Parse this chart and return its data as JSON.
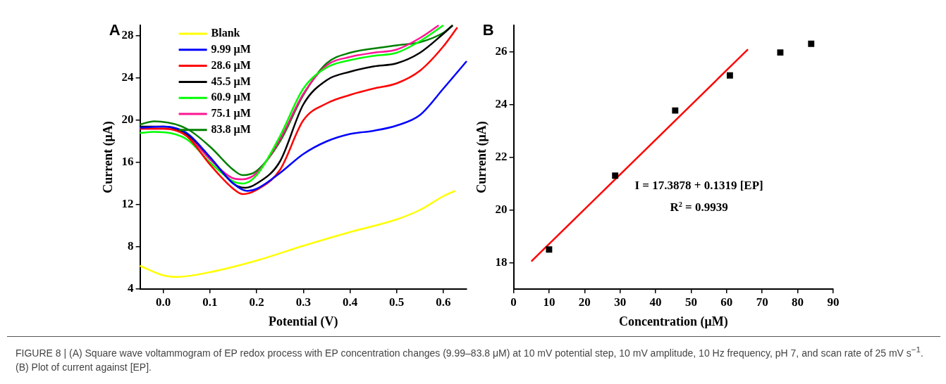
{
  "chart_data": [
    {
      "type": "line",
      "xlabel": "Potential (V)",
      "ylabel": "Current (μA)",
      "xlim": [
        -0.05,
        0.65
      ],
      "ylim": [
        4,
        29
      ],
      "xticks": [
        {
          "value": 0,
          "label": "0.0"
        },
        0.1,
        0.2,
        0.3,
        0.4,
        0.5,
        0.6
      ],
      "yticks": [
        4,
        8,
        12,
        16,
        20,
        24,
        28
      ],
      "grid": false,
      "legend": "top left",
      "marker": "none",
      "line_style": "solid",
      "annotations": [
        "A",
        "FIGURE 8 | (A) Square wave voltammogram of EP redox process with EP concentration changes (9.99–83.8 μM) at 10 mV potential step, 10 mV amplitude, 10 Hz frequency, pH 7, and scan rate of 25 mV s$^{−1}$. (B) Plot of current against [EP]."
      ],
      "series": [
        {
          "name": "Blank",
          "color": "#ffff00",
          "x": [
            -0.05,
            0.0,
            0.03,
            0.1,
            0.2,
            0.3,
            0.4,
            0.5,
            0.55,
            0.6,
            0.625
          ],
          "values": [
            6.2,
            5.3,
            5.15,
            5.6,
            6.7,
            8.1,
            9.4,
            10.6,
            11.5,
            12.8,
            13.3
          ]
        },
        {
          "name": "9.99 μM",
          "color": "#0000ff",
          "x": [
            -0.05,
            0.0,
            0.05,
            0.1,
            0.15,
            0.18,
            0.2,
            0.25,
            0.3,
            0.35,
            0.4,
            0.45,
            0.5,
            0.55,
            0.6,
            0.65
          ],
          "values": [
            19.3,
            19.4,
            18.8,
            16.5,
            14.0,
            13.3,
            13.5,
            15.0,
            16.8,
            18.0,
            18.7,
            19.0,
            19.5,
            20.5,
            23.0,
            25.6
          ]
        },
        {
          "name": "28.6 μM",
          "color": "#ff0000",
          "x": [
            -0.05,
            0.0,
            0.05,
            0.1,
            0.15,
            0.17,
            0.2,
            0.25,
            0.3,
            0.35,
            0.4,
            0.45,
            0.5,
            0.55,
            0.6,
            0.63
          ],
          "values": [
            19.2,
            19.2,
            18.5,
            15.8,
            13.5,
            13.0,
            13.4,
            15.3,
            20.0,
            21.6,
            22.4,
            23.0,
            23.5,
            24.7,
            27.0,
            28.8
          ]
        },
        {
          "name": "45.5 μM",
          "color": "#000000",
          "x": [
            -0.05,
            0.0,
            0.05,
            0.1,
            0.15,
            0.175,
            0.2,
            0.25,
            0.3,
            0.35,
            0.4,
            0.45,
            0.5,
            0.55,
            0.6,
            0.62
          ],
          "values": [
            19.4,
            19.4,
            18.7,
            16.5,
            14.0,
            13.6,
            14.0,
            16.1,
            21.5,
            23.8,
            24.6,
            25.1,
            25.4,
            26.4,
            28.2,
            29.0
          ]
        },
        {
          "name": "60.9 μM",
          "color": "#00ff00",
          "x": [
            -0.05,
            -0.02,
            0.05,
            0.1,
            0.15,
            0.17,
            0.2,
            0.25,
            0.3,
            0.35,
            0.4,
            0.45,
            0.5,
            0.55,
            0.6
          ],
          "values": [
            18.8,
            18.9,
            18.2,
            16.0,
            14.2,
            14.0,
            14.8,
            18.5,
            23.0,
            25.0,
            25.7,
            26.1,
            26.4,
            27.5,
            29.0
          ]
        },
        {
          "name": "75.1 μM",
          "color": "#ff1493",
          "x": [
            -0.05,
            0.0,
            0.05,
            0.1,
            0.15,
            0.17,
            0.2,
            0.25,
            0.3,
            0.35,
            0.4,
            0.45,
            0.5,
            0.55,
            0.59
          ],
          "values": [
            19.2,
            19.2,
            18.6,
            16.3,
            14.5,
            14.4,
            15.0,
            18.2,
            22.5,
            25.2,
            26.0,
            26.4,
            26.7,
            27.8,
            29.0
          ]
        },
        {
          "name": "83.8 μM",
          "color": "#008000",
          "x": [
            -0.05,
            -0.02,
            0.05,
            0.1,
            0.15,
            0.17,
            0.2,
            0.25,
            0.3,
            0.35,
            0.4,
            0.45,
            0.5,
            0.55,
            0.6,
            0.62
          ],
          "values": [
            19.6,
            19.9,
            19.2,
            17.5,
            15.3,
            14.8,
            15.2,
            18.0,
            22.4,
            25.4,
            26.4,
            26.8,
            27.1,
            27.4,
            28.3,
            29.0
          ]
        }
      ]
    },
    {
      "type": "scatter",
      "xlabel": "Concentration (μM)",
      "ylabel": "Current (μA)",
      "xlim": [
        0,
        90
      ],
      "ylim": [
        17,
        27
      ],
      "xticks": [
        0,
        10,
        20,
        30,
        40,
        50,
        60,
        70,
        80,
        90
      ],
      "yticks": [
        18,
        20,
        22,
        24,
        26
      ],
      "grid": false,
      "legend": false,
      "annotations": [
        "B",
        "I = 17.3878 + 0.1319 [EP]",
        "R$^{2}$ = 0.9939"
      ],
      "series": [
        {
          "type": "scatter",
          "color": "#000000",
          "marker": "square",
          "x": [
            9.99,
            28.6,
            45.5,
            60.9,
            75.1,
            83.8
          ],
          "values": [
            18.5,
            21.3,
            23.77,
            25.1,
            25.97,
            26.3
          ]
        },
        {
          "type": "line",
          "color": "#ff0000",
          "marker": "none",
          "x": [
            5,
            66
          ],
          "values": [
            18.05,
            26.09
          ]
        }
      ]
    }
  ]
}
